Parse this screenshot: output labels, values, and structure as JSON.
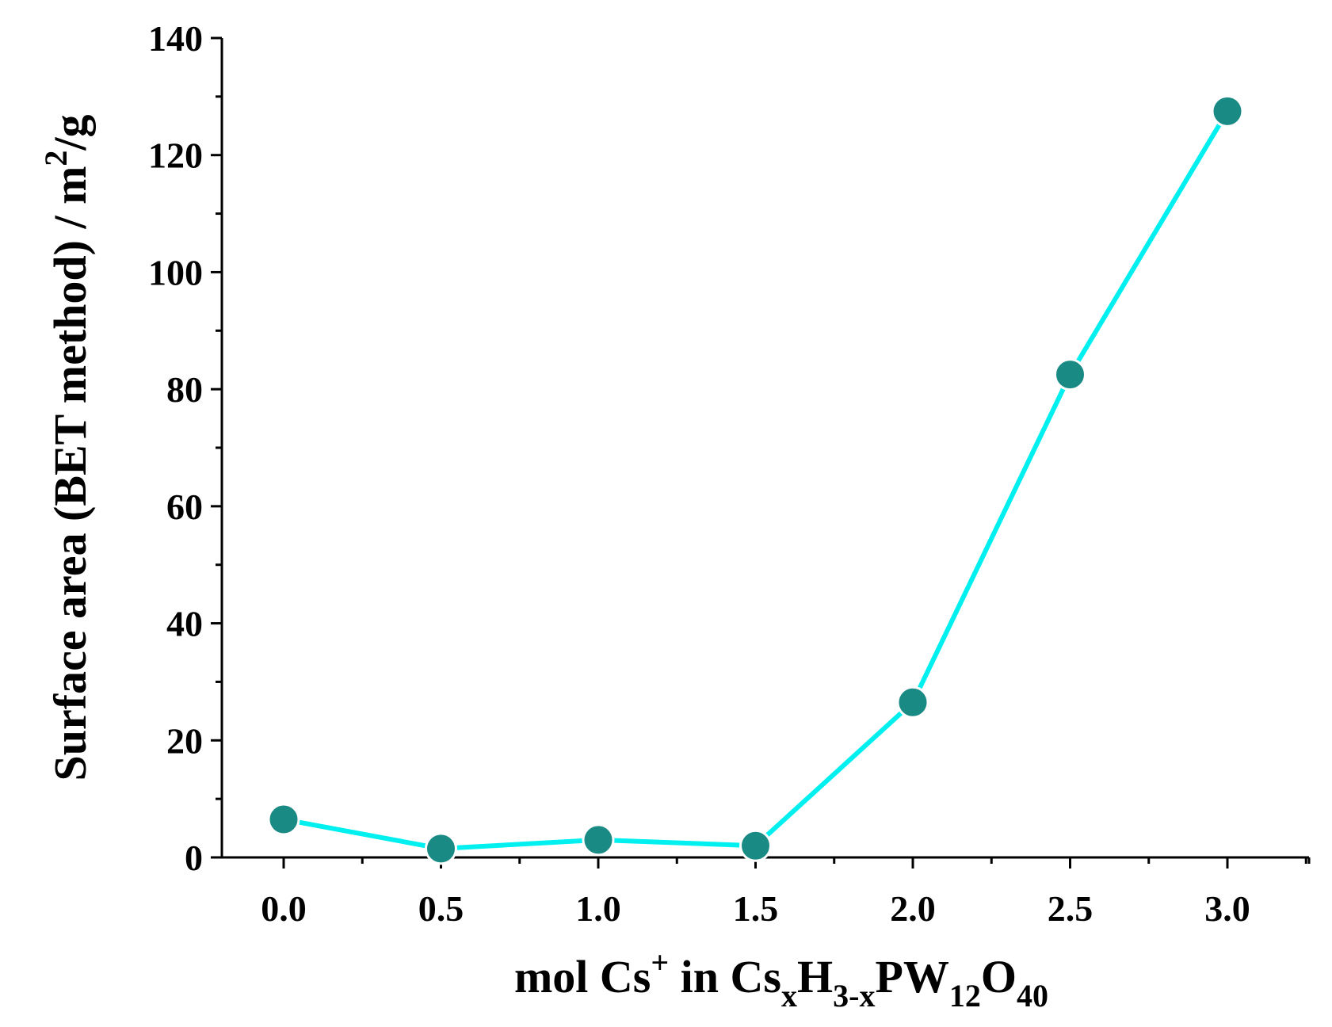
{
  "chart_data": {
    "type": "line",
    "x": [
      0.0,
      0.5,
      1.0,
      1.5,
      2.0,
      2.5,
      3.0
    ],
    "series": [
      {
        "values": [
          6.5,
          1.5,
          3.0,
          2.0,
          26.5,
          82.5,
          127.5
        ]
      }
    ],
    "xlabel": {
      "base": "mol Cs",
      "sup": "+",
      "mid": " in Cs",
      "sub1": "x",
      "h": "H",
      "sub2": "3-x",
      "pw": "PW",
      "sub3": "12",
      "o": "O",
      "sub4": "40"
    },
    "ylabel": {
      "main": "Surface area (BET method) / m",
      "sup": "2",
      "tail": "/g"
    },
    "xlim": [
      -0.2,
      3.25
    ],
    "ylim": [
      0,
      140
    ],
    "x_ticks": [
      "0.0",
      "0.5",
      "1.0",
      "1.5",
      "2.0",
      "2.5",
      "3.0"
    ],
    "y_ticks": [
      "0",
      "20",
      "40",
      "60",
      "80",
      "100",
      "120",
      "140"
    ],
    "grid": false,
    "colors": {
      "line": "#00f0f0",
      "marker": "#1a8a85",
      "axis": "#000000"
    }
  }
}
